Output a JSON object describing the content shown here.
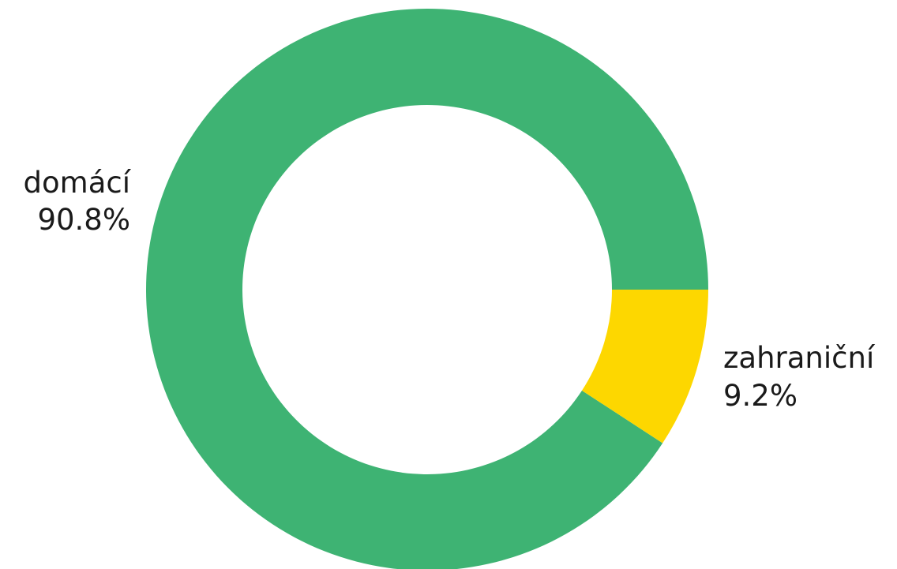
{
  "chart_data": {
    "type": "pie",
    "donut": true,
    "title": "",
    "categories": [
      "domácí",
      "zahraniční"
    ],
    "values": [
      90.8,
      9.2
    ],
    "labels": [
      {
        "name": "domácí",
        "percent": "90.8%"
      },
      {
        "name": "zahraniční",
        "percent": "9.2%"
      }
    ],
    "colors": [
      "#3EB373",
      "#FDD700"
    ],
    "legend": "none"
  }
}
